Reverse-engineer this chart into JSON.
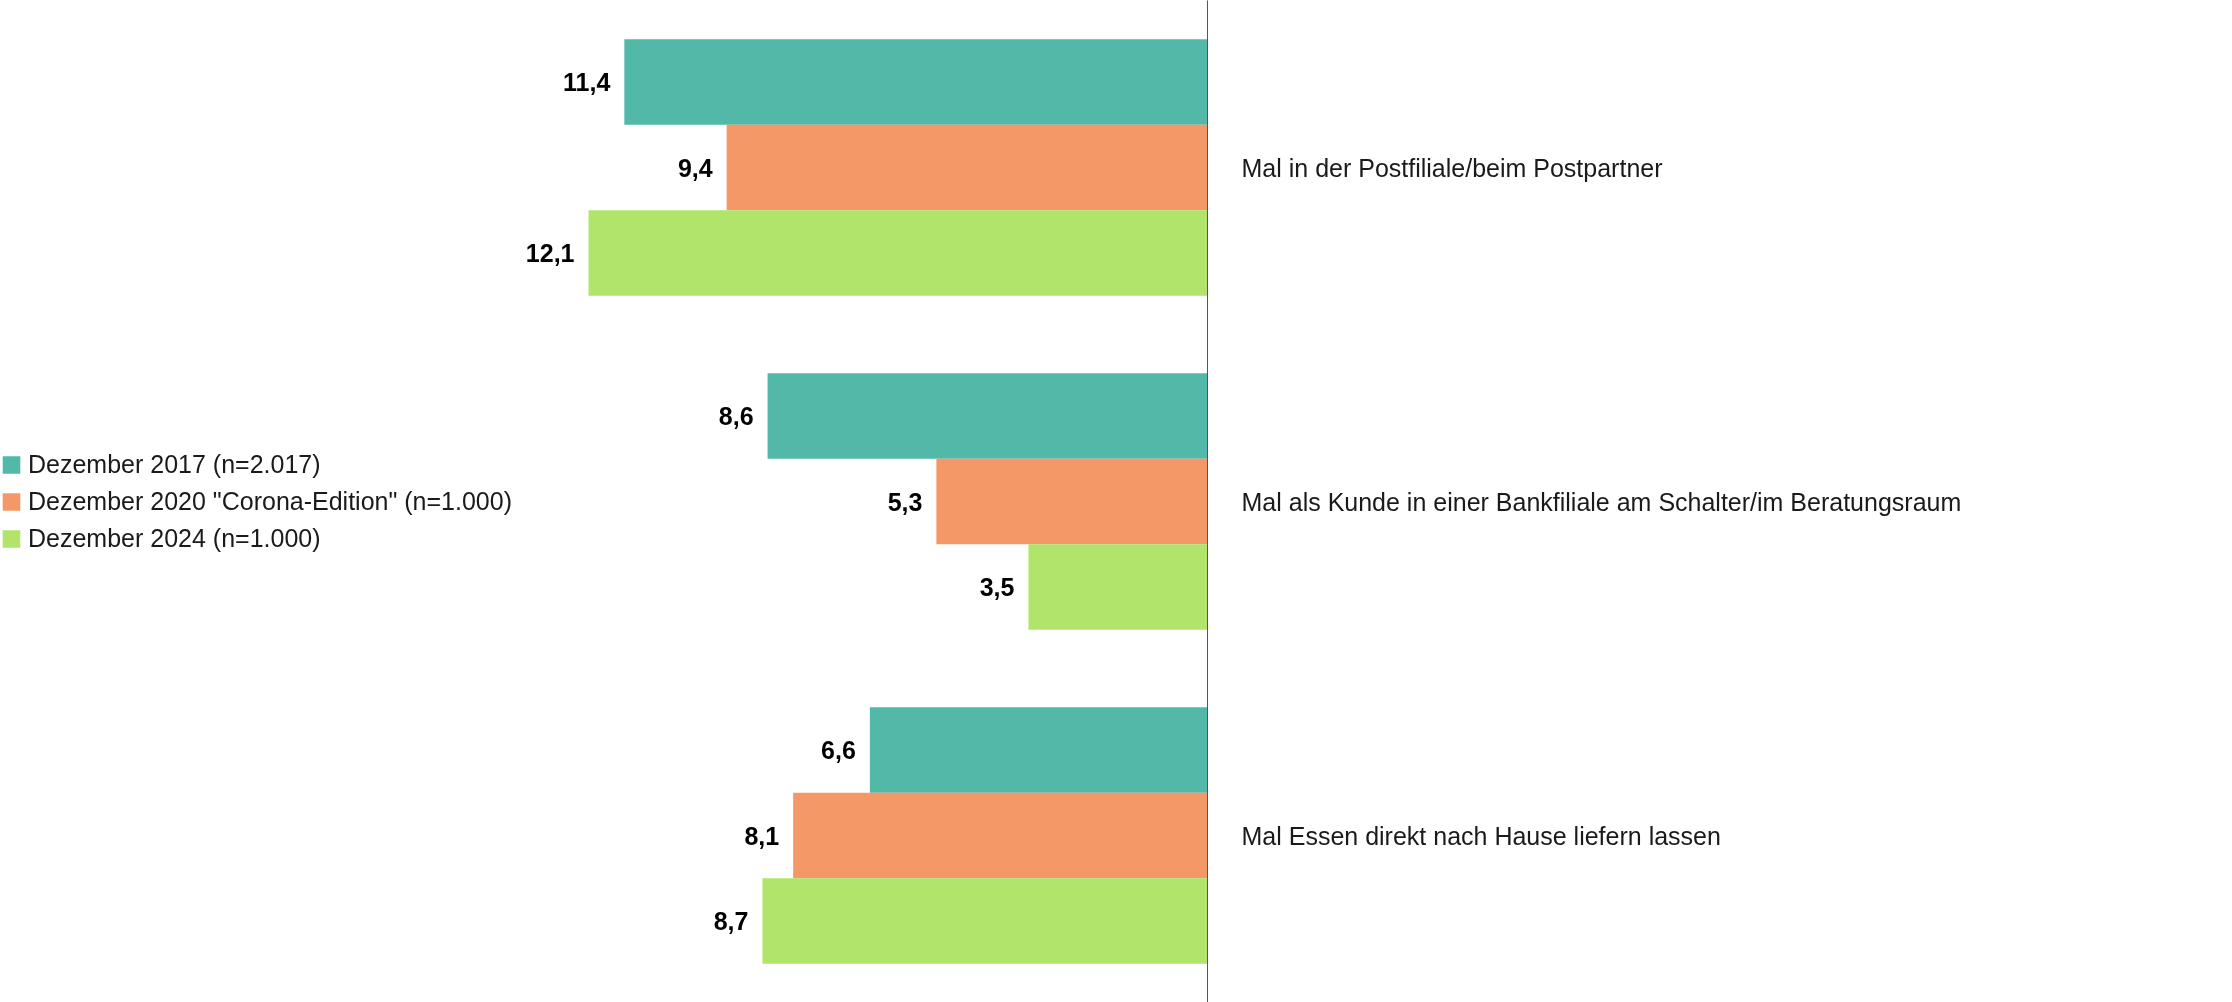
{
  "chart_data": {
    "type": "bar",
    "orientation": "horizontal",
    "categories": [
      "Mal in der Postfiliale/beim Postpartner",
      "Mal als Kunde in einer Bankfiliale am Schalter/im Beratungsraum",
      "Mal Essen direkt nach Hause liefern lassen"
    ],
    "series": [
      {
        "name": "Dezember 2017 (n=2.017)",
        "color": "#52b9a9",
        "values": [
          11.4,
          8.6,
          6.6
        ],
        "value_labels": [
          "11,4",
          "8,6",
          "6,6"
        ]
      },
      {
        "name": "Dezember 2020 \"Corona-Edition\" (n=1.000)",
        "color": "#f59868",
        "values": [
          9.4,
          5.3,
          8.1
        ],
        "value_labels": [
          "9,4",
          "5,3",
          "8,1"
        ]
      },
      {
        "name": "Dezember 2024 (n=1.000)",
        "color": "#b0e46a",
        "values": [
          12.1,
          3.5,
          8.7
        ],
        "value_labels": [
          "12,1",
          "3,5",
          "8,7"
        ]
      }
    ],
    "tick_labels": "y",
    "grid": false,
    "legend": "left"
  }
}
